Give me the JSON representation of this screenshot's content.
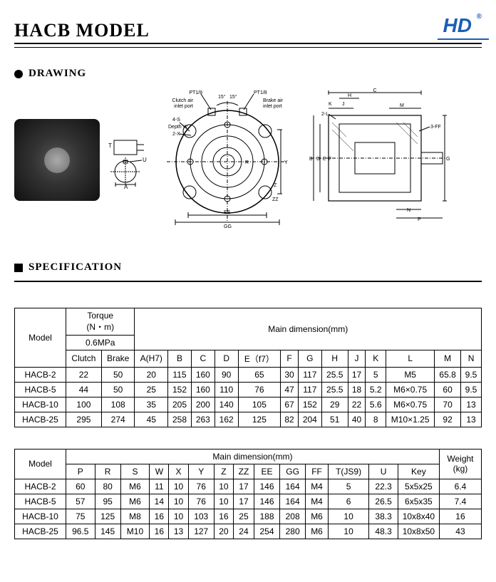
{
  "page_title": "HACB MODEL",
  "logo": {
    "text": "HD",
    "reg": "®",
    "color": "#1a5fb4"
  },
  "sections": {
    "drawing_label": "DRAWING",
    "specification_label": "SPECIFICATION"
  },
  "drawing": {
    "pt_label": "PT1/8",
    "clutch_port": "Clutch air\ninlet port",
    "brake_port": "Brake air\ninlet port",
    "angle15": "15°",
    "four_s": "4-S",
    "depth_w": "Depth W",
    "two_x": "2-X",
    "dim_T": "T",
    "dim_A": "A",
    "dim_U": "U",
    "dim_R": "R",
    "dim_Y": "Y",
    "dim_Z": "Z",
    "dim_ZZ": "ZZ",
    "dim_EE": "EE",
    "dim_GG": "GG",
    "dim_B": "B",
    "dim_D": "D",
    "dim_E": "E",
    "dim_F": "F",
    "dim_H": "H",
    "dim_J": "J",
    "dim_K": "K",
    "two_L": "2-L",
    "dim_M": "M",
    "dim_N": "N",
    "dim_P": "P",
    "dim_C": "C",
    "dim_G": "G",
    "three_FF": "3-FF"
  },
  "table1": {
    "headers": {
      "model": "Model",
      "torque": "Torque\n(N・m)",
      "torque_pressure": "0.6MPa",
      "main_dim": "Main dimension(mm)",
      "clutch": "Clutch",
      "brake": "Brake",
      "cols": [
        "A(H7)",
        "B",
        "C",
        "D",
        "E（f7）",
        "F",
        "G",
        "H",
        "J",
        "K",
        "L",
        "M",
        "N"
      ]
    },
    "rows": [
      {
        "model": "HACB-2",
        "clutch": "22",
        "brake": "50",
        "v": [
          "20",
          "115",
          "160",
          "90",
          "65",
          "30",
          "117",
          "25.5",
          "17",
          "5",
          "M5",
          "65.8",
          "9.5"
        ]
      },
      {
        "model": "HACB-5",
        "clutch": "44",
        "brake": "50",
        "v": [
          "25",
          "152",
          "160",
          "110",
          "76",
          "47",
          "117",
          "25.5",
          "18",
          "5.2",
          "M6×0.75",
          "60",
          "9.5"
        ]
      },
      {
        "model": "HACB-10",
        "clutch": "100",
        "brake": "108",
        "v": [
          "35",
          "205",
          "200",
          "140",
          "105",
          "67",
          "152",
          "29",
          "22",
          "5.6",
          "M6×0.75",
          "70",
          "13"
        ]
      },
      {
        "model": "HACB-25",
        "clutch": "295",
        "brake": "274",
        "v": [
          "45",
          "258",
          "263",
          "162",
          "125",
          "82",
          "204",
          "51",
          "40",
          "8",
          "M10×1.25",
          "92",
          "13"
        ]
      }
    ]
  },
  "table2": {
    "headers": {
      "model": "Model",
      "main_dim": "Main dimension(mm)",
      "weight": "Weight\n(kg)",
      "cols": [
        "P",
        "R",
        "S",
        "W",
        "X",
        "Y",
        "Z",
        "ZZ",
        "EE",
        "GG",
        "FF",
        "T(JS9)",
        "U",
        "Key"
      ]
    },
    "rows": [
      {
        "model": "HACB-2",
        "v": [
          "60",
          "80",
          "M6",
          "11",
          "10",
          "76",
          "10",
          "17",
          "146",
          "164",
          "M4",
          "5",
          "22.3",
          "5x5x25"
        ],
        "wt": "6.4"
      },
      {
        "model": "HACB-5",
        "v": [
          "57",
          "95",
          "M6",
          "14",
          "10",
          "76",
          "10",
          "17",
          "146",
          "164",
          "M4",
          "6",
          "26.5",
          "6x5x35"
        ],
        "wt": "7.4"
      },
      {
        "model": "HACB-10",
        "v": [
          "75",
          "125",
          "M8",
          "16",
          "10",
          "103",
          "16",
          "25",
          "188",
          "208",
          "M6",
          "10",
          "38.3",
          "10x8x40"
        ],
        "wt": "16"
      },
      {
        "model": "HACB-25",
        "v": [
          "96.5",
          "145",
          "M10",
          "16",
          "13",
          "127",
          "20",
          "24",
          "254",
          "280",
          "M6",
          "10",
          "48.3",
          "10x8x50"
        ],
        "wt": "43"
      }
    ]
  },
  "colors": {
    "text": "#000000",
    "border": "#000000",
    "background": "#ffffff",
    "logo": "#1a5fb4"
  }
}
